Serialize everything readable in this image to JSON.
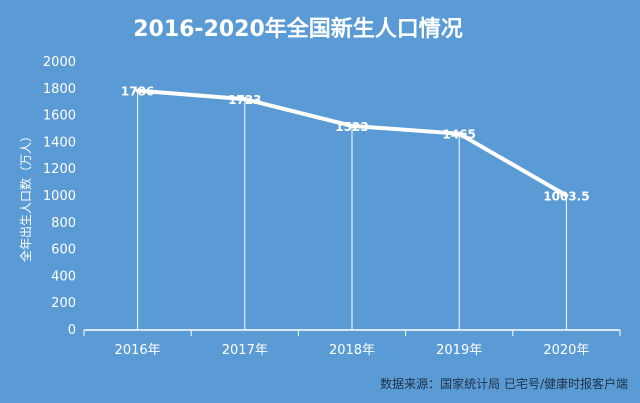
{
  "chart_data": {
    "type": "line",
    "title": "2016-2020年全国新生人口情况",
    "ylabel": "全年出生人口数（万人）",
    "xlabel": "",
    "categories": [
      "2016年",
      "2017年",
      "2018年",
      "2019年",
      "2020年"
    ],
    "series": [
      {
        "values": [
          1786,
          1723,
          1523,
          1465,
          1003.5
        ]
      }
    ],
    "data_labels": [
      "1786",
      "1723",
      "1523",
      "1465",
      "1003.5"
    ],
    "ylim": [
      0,
      2000
    ],
    "yticks": [
      "0",
      "200",
      "400",
      "600",
      "800",
      "1000",
      "1200",
      "1400",
      "1600",
      "1800",
      "2000"
    ],
    "grid": false,
    "colors": {
      "background": "#5b9bd5",
      "line": "#ffffff",
      "axis": "#ffffff",
      "drop_lines": "#ffffff",
      "text": "#ffffff",
      "source_text": "#1f2f45"
    },
    "source": "数据来源：国家统计局  已宅号/健康时报客户端"
  }
}
